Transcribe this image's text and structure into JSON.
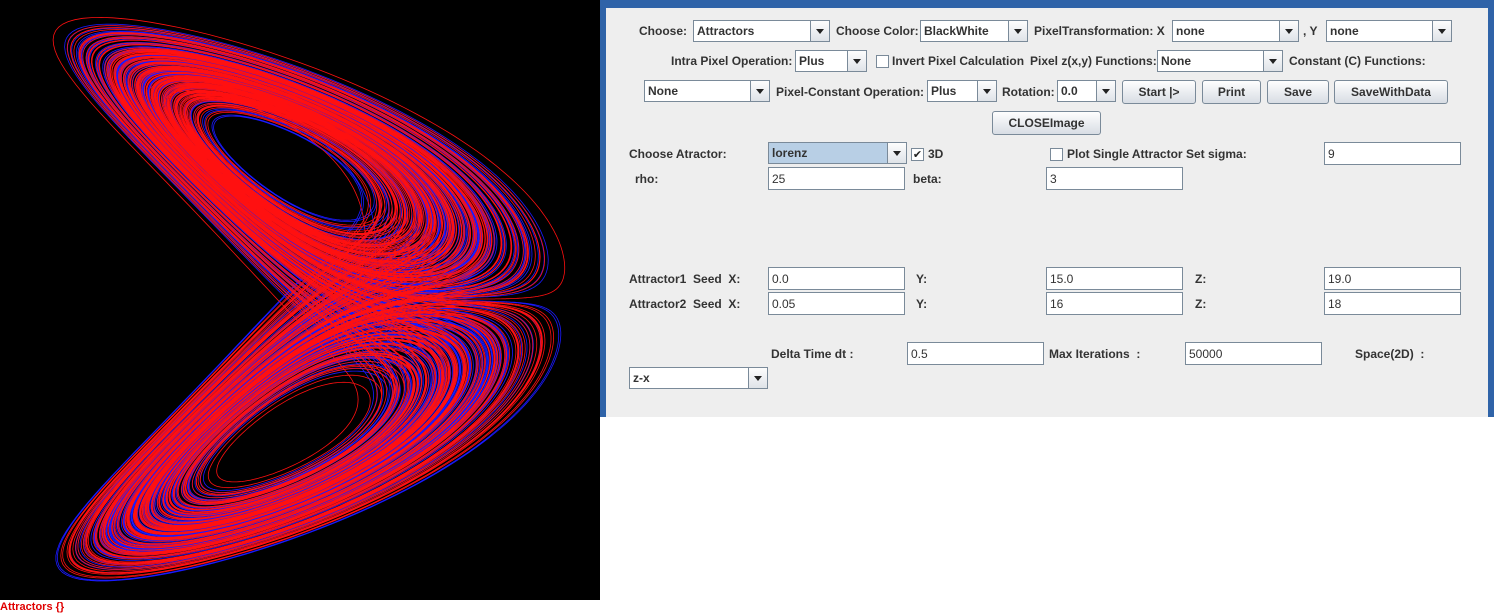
{
  "image": {
    "caption": "Attractors {}"
  },
  "controls": {
    "choose": {
      "label": "Choose:",
      "value": "Attractors"
    },
    "choose_color": {
      "label": "Choose Color:",
      "value": "BlackWhite"
    },
    "pixel_transformation": {
      "label": "PixelTransformation: X",
      "x_value": "none",
      "y_label": ", Y",
      "y_value": "none"
    },
    "intra_pixel_operation": {
      "label": "Intra Pixel Operation:",
      "value": "Plus"
    },
    "invert_pixel_calculation": {
      "label": "Invert Pixel Calculation",
      "checked": false
    },
    "pixel_functions": {
      "label": "Pixel z(x,y) Functions:",
      "value": "None"
    },
    "constant_functions": {
      "label": "Constant (C) Functions:",
      "value": "None"
    },
    "pixel_constant_operation": {
      "label": "Pixel-Constant Operation:",
      "value": "Plus"
    },
    "rotation": {
      "label": "Rotation:",
      "value": "0.0"
    },
    "buttons": [
      "Start |>",
      "Print",
      "Save",
      "SaveWithData",
      "CLOSEImage"
    ]
  },
  "attractor": {
    "choose": {
      "label": "Choose Atractor:",
      "value": "lorenz"
    },
    "three_d": {
      "label": "3D",
      "checked": true
    },
    "plot_single": {
      "label": "Plot Single Attractor",
      "checked": false
    },
    "sigma": {
      "label": "Set sigma:",
      "value": 9
    },
    "rho": {
      "label": "rho:",
      "value": 25
    },
    "beta": {
      "label": "beta:",
      "value": 3
    },
    "seed1": {
      "label": "Attractor1  Seed  X:",
      "x": "0.0",
      "y_label": "Y:",
      "y": "15.0",
      "z_label": "Z:",
      "z": "19.0"
    },
    "seed2": {
      "label": "Attractor2  Seed  X:",
      "x": 0.05,
      "y_label": "Y:",
      "y": 16,
      "z_label": "Z:",
      "z": 18
    },
    "delta_time": {
      "label": "Delta Time dt :",
      "value": 0.5
    },
    "max_iterations": {
      "label": "Max Iterations  :",
      "value": 50000
    },
    "space": {
      "label": "Space(2D)  :",
      "value": "z-x"
    }
  }
}
